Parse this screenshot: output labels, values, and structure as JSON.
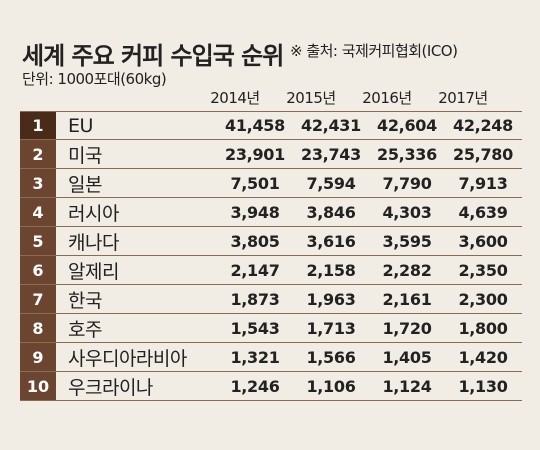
{
  "header": {
    "title": "세계 주요 커피 수입국 순위",
    "source": "※ 출처: 국제커피협회(ICO)",
    "unit": "단위: 1000포대(60kg)"
  },
  "chart_data": {
    "type": "table",
    "columns": [
      "2014년",
      "2015년",
      "2016년",
      "2017년"
    ],
    "rows": [
      {
        "rank": "1",
        "country": "EU",
        "values": [
          "41,458",
          "42,431",
          "42,604",
          "42,248"
        ]
      },
      {
        "rank": "2",
        "country": "미국",
        "values": [
          "23,901",
          "23,743",
          "25,336",
          "25,780"
        ]
      },
      {
        "rank": "3",
        "country": "일본",
        "values": [
          "7,501",
          "7,594",
          "7,790",
          "7,913"
        ]
      },
      {
        "rank": "4",
        "country": "러시아",
        "values": [
          "3,948",
          "3,846",
          "4,303",
          "4,639"
        ]
      },
      {
        "rank": "5",
        "country": "캐나다",
        "values": [
          "3,805",
          "3,616",
          "3,595",
          "3,600"
        ]
      },
      {
        "rank": "6",
        "country": "알제리",
        "values": [
          "2,147",
          "2,158",
          "2,282",
          "2,350"
        ]
      },
      {
        "rank": "7",
        "country": "한국",
        "values": [
          "1,873",
          "1,963",
          "2,161",
          "2,300"
        ]
      },
      {
        "rank": "8",
        "country": "호주",
        "values": [
          "1,543",
          "1,713",
          "1,720",
          "1,800"
        ]
      },
      {
        "rank": "9",
        "country": "사우디아라비아",
        "values": [
          "1,321",
          "1,566",
          "1,405",
          "1,420"
        ]
      },
      {
        "rank": "10",
        "country": "우크라이나",
        "values": [
          "1,246",
          "1,106",
          "1,124",
          "1,130"
        ]
      }
    ]
  },
  "colors": {
    "background": "#f1ece4",
    "rank_cell": "#6b4530",
    "rule": "#8a6c52"
  }
}
